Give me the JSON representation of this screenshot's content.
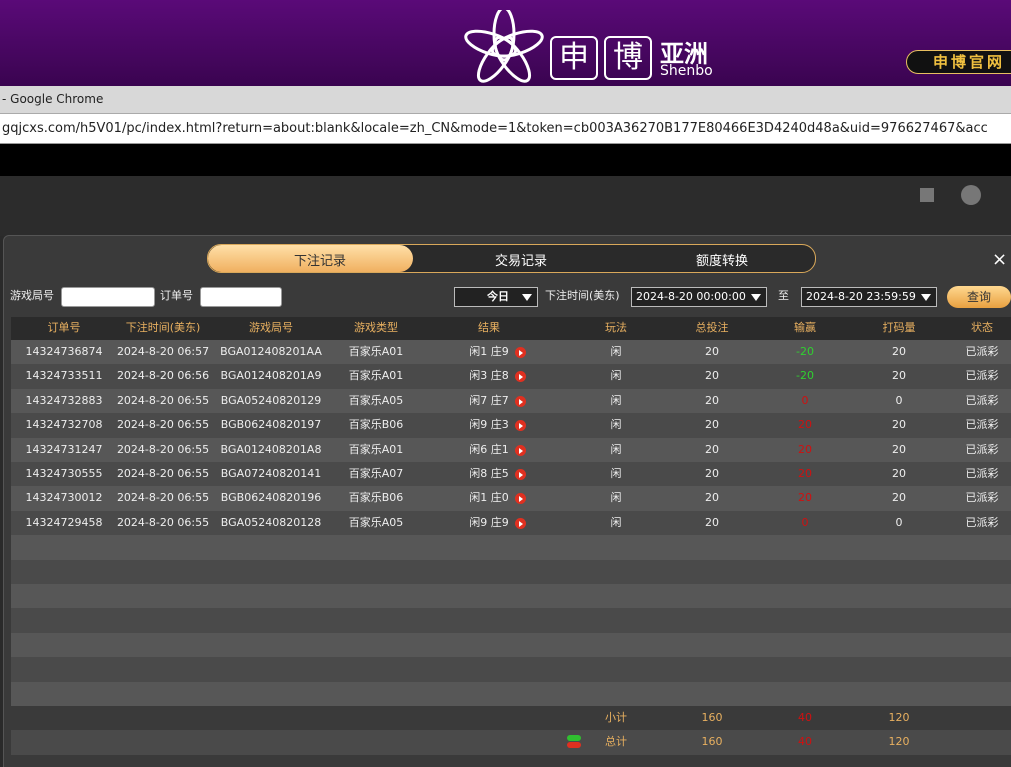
{
  "header": {
    "logo_char_1": "申",
    "logo_char_2": "博",
    "logo_cn": "亚洲",
    "logo_en": "Shenbo",
    "official_site": "申博官网"
  },
  "browser": {
    "title": "- Google Chrome",
    "url": "gqjcxs.com/h5V01/pc/index.html?return=about:blank&locale=zh_CN&mode=1&token=cb003A36270B177E80466E3D4240d48a&uid=976627467&acc"
  },
  "tabs": [
    "下注记录",
    "交易记录",
    "额度转换"
  ],
  "close": "×",
  "filters": {
    "round_label": "游戏局号",
    "order_label": "订单号",
    "range": "今日",
    "time_label": "下注时间(美东)",
    "start": "2024-8-20 00:00:00",
    "to": "至",
    "end": "2024-8-20 23:59:59",
    "search": "查询"
  },
  "table": {
    "columns": [
      "订单号",
      "下注时间(美东)",
      "游戏局号",
      "游戏类型",
      "结果",
      "玩法",
      "总投注",
      "输赢",
      "打码量",
      "状态"
    ],
    "rows": [
      [
        "14324736874",
        "2024-8-20 06:57",
        "BGA012408201AA",
        "百家乐A01",
        "闲1 庄9",
        "闲",
        20,
        -20,
        20,
        "已派彩"
      ],
      [
        "14324733511",
        "2024-8-20 06:56",
        "BGA012408201A9",
        "百家乐A01",
        "闲3 庄8",
        "闲",
        20,
        -20,
        20,
        "已派彩"
      ],
      [
        "14324732883",
        "2024-8-20 06:55",
        "BGA05240820129",
        "百家乐A05",
        "闲7 庄7",
        "闲",
        20,
        0,
        0,
        "已派彩"
      ],
      [
        "14324732708",
        "2024-8-20 06:55",
        "BGB06240820197",
        "百家乐B06",
        "闲9 庄3",
        "闲",
        20,
        20,
        20,
        "已派彩"
      ],
      [
        "14324731247",
        "2024-8-20 06:55",
        "BGA012408201A8",
        "百家乐A01",
        "闲6 庄1",
        "闲",
        20,
        20,
        20,
        "已派彩"
      ],
      [
        "14324730555",
        "2024-8-20 06:55",
        "BGA07240820141",
        "百家乐A07",
        "闲8 庄5",
        "闲",
        20,
        20,
        20,
        "已派彩"
      ],
      [
        "14324730012",
        "2024-8-20 06:55",
        "BGB06240820196",
        "百家乐B06",
        "闲1 庄0",
        "闲",
        20,
        20,
        20,
        "已派彩"
      ],
      [
        "14324729458",
        "2024-8-20 06:55",
        "BGA05240820128",
        "百家乐A05",
        "闲9 庄9",
        "闲",
        20,
        0,
        0,
        "已派彩"
      ]
    ],
    "subtotal": {
      "label": "小计",
      "total_bet": 160,
      "win_loss": 40,
      "turnover": 120
    },
    "total": {
      "label": "总计",
      "total_bet": 160,
      "win_loss": 40,
      "turnover": 120
    }
  }
}
